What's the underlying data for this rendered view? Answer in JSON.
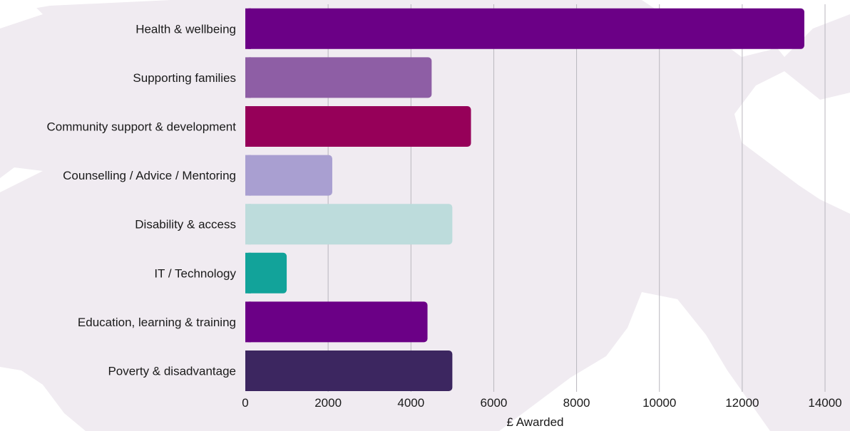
{
  "chart_data": {
    "type": "bar",
    "orientation": "horizontal",
    "categories": [
      "Health & wellbeing",
      "Supporting families",
      "Community support & development",
      "Counselling / Advice / Mentoring",
      "Disability & access",
      "IT / Technology",
      "Education, learning & training",
      "Poverty & disadvantage"
    ],
    "values": [
      13500,
      4500,
      5450,
      2100,
      5000,
      1000,
      4400,
      5000
    ],
    "bar_colors": [
      "#6b0086",
      "#8e5ea5",
      "#960059",
      "#a99fd1",
      "#bddcdc",
      "#12a39a",
      "#6b0086",
      "#3c2660"
    ],
    "xlabel": "£ Awarded",
    "ylabel": "",
    "title": "",
    "xlim": [
      0,
      14000
    ],
    "xticks": [
      0,
      2000,
      4000,
      6000,
      8000,
      10000,
      12000,
      14000
    ],
    "grid": "vertical",
    "legend": "none"
  },
  "background": {
    "blob_color": "#f0ebf1",
    "page_color": "#ffffff"
  }
}
